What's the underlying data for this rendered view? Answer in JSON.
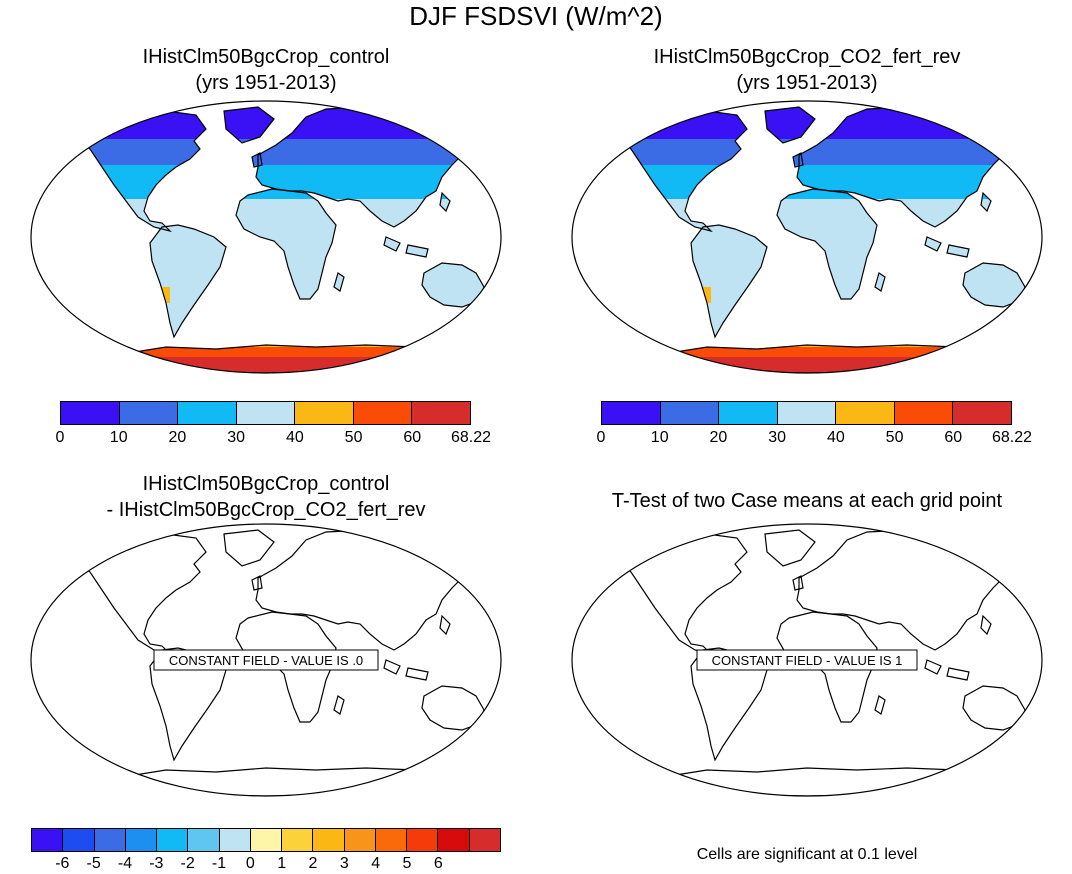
{
  "figure": {
    "title": "DJF FSDSVI (W/m^2)"
  },
  "panels": [
    {
      "id": "control",
      "title_line1": "IHistClm50BgcCrop_control",
      "title_line2": "(yrs 1951-2013)"
    },
    {
      "id": "co2",
      "title_line1": "IHistClm50BgcCrop_CO2_fert_rev",
      "title_line2": "(yrs 1951-2013)"
    },
    {
      "id": "diff",
      "title_line1": "IHistClm50BgcCrop_control",
      "title_line2": "- IHistClm50BgcCrop_CO2_fert_rev",
      "message": "CONSTANT FIELD - VALUE IS .0"
    },
    {
      "id": "ttest",
      "title_line1": "T-Test of two Case means at each grid point",
      "message": "CONSTANT FIELD - VALUE IS 1",
      "footnote": "Cells are significant at 0.1 level"
    }
  ],
  "colorbar_top": {
    "colors": [
      "#3a10f5",
      "#3b6ce6",
      "#12baf5",
      "#bfe3f3",
      "#fbb714",
      "#fa4b07",
      "#d72c2c"
    ],
    "ticks": [
      "0",
      "10",
      "20",
      "30",
      "40",
      "50",
      "60",
      "68.22"
    ]
  },
  "colorbar_bottom": {
    "colors": [
      "#3a10f5",
      "#1d4cf0",
      "#3b6ce6",
      "#1c8ff0",
      "#12baf5",
      "#5fc6f0",
      "#bfe3f3",
      "#fdf6a9",
      "#fbd23a",
      "#fbb714",
      "#f8941a",
      "#fa6a0a",
      "#f53b0a",
      "#d70b0b",
      "#d72c2c"
    ],
    "ticks": [
      "-6",
      "-5",
      "-4",
      "-3",
      "-2",
      "-1",
      "0",
      "1",
      "2",
      "3",
      "4",
      "5",
      "6"
    ]
  },
  "map_colors": {
    "ocean": "#ffffff",
    "coast": "#000000"
  }
}
